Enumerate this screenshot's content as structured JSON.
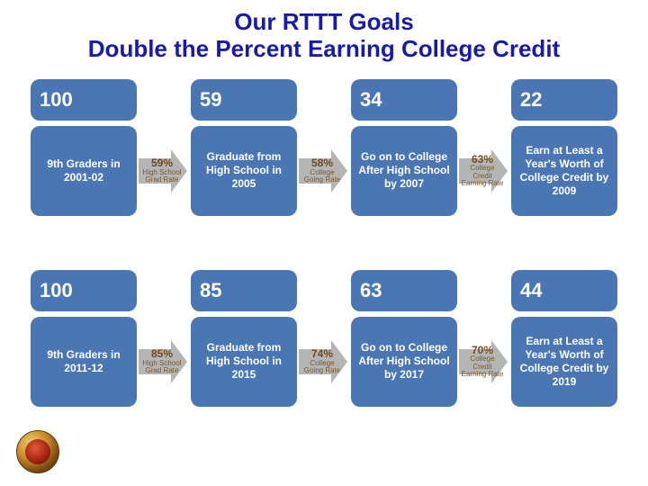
{
  "title_line1": "Our RTTT Goals",
  "title_line2": "Double the Percent Earning College Credit",
  "colors": {
    "box_bg": "#4a77b4",
    "box_text": "#ffffff",
    "arrow_bg": "#b5b5b5",
    "arrow_text": "#7a5a2a",
    "title_color": "#1a1aa8",
    "page_bg": "#ffffff"
  },
  "rows": [
    {
      "cohort_label": "9th Graders in 2001-02",
      "stages": [
        {
          "num": "100",
          "label": "9th Graders in 2001-02"
        },
        {
          "num": "59",
          "label": "Graduate from High School in 2005"
        },
        {
          "num": "34",
          "label": "Go on to College After High School by 2007"
        },
        {
          "num": "22",
          "label": "Earn at Least a Year's Worth of College Credit by 2009"
        }
      ],
      "arrows": [
        {
          "pct": "59%",
          "sub": "High School Grad Rate"
        },
        {
          "pct": "58%",
          "sub": "College Going Rate"
        },
        {
          "pct": "63%",
          "sub": "College Credit Earning Rate"
        }
      ]
    },
    {
      "cohort_label": "9th Graders in 2011-12",
      "stages": [
        {
          "num": "100",
          "label": "9th Graders in 2011-12"
        },
        {
          "num": "85",
          "label": "Graduate from High School in 2015"
        },
        {
          "num": "63",
          "label": "Go on to College After High School by 2017"
        },
        {
          "num": "44",
          "label": "Earn at Least a Year's Worth of College Credit by 2019"
        }
      ],
      "arrows": [
        {
          "pct": "85%",
          "sub": "High School Grad Rate"
        },
        {
          "pct": "74%",
          "sub": "College Going Rate"
        },
        {
          "pct": "70%",
          "sub": "College Credit Earning Rate"
        }
      ]
    }
  ]
}
